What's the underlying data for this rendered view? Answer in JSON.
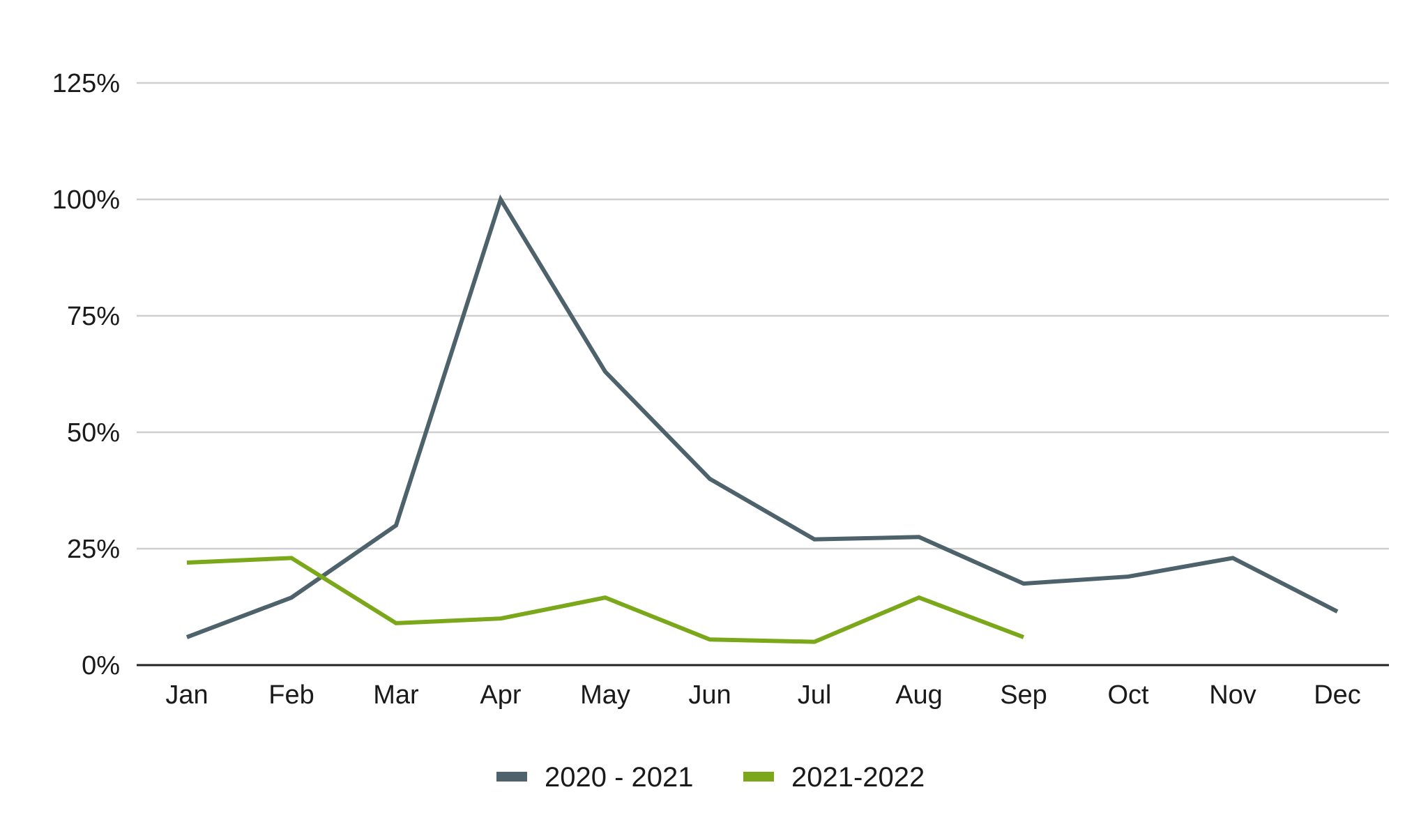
{
  "chart_data": {
    "type": "line",
    "categories": [
      "Jan",
      "Feb",
      "Mar",
      "Apr",
      "May",
      "Jun",
      "Jul",
      "Aug",
      "Sep",
      "Oct",
      "Nov",
      "Dec"
    ],
    "series": [
      {
        "name": "2020 - 2021",
        "color": "#4e626c",
        "values": [
          6,
          14.5,
          30,
          100,
          63,
          40,
          27,
          27.5,
          17.5,
          19,
          23,
          11.5
        ]
      },
      {
        "name": "2021-2022",
        "color": "#7aa81a",
        "values": [
          22,
          23,
          9,
          10,
          14.5,
          5.5,
          5,
          14.5,
          6,
          null,
          null,
          null
        ]
      }
    ],
    "y_ticks": [
      "0%",
      "25%",
      "50%",
      "75%",
      "100%",
      "125%"
    ],
    "ylim": [
      0,
      125
    ],
    "y_unit": "%",
    "title": "",
    "xlabel": "",
    "ylabel": "",
    "grid": true,
    "legend_position": "bottom-center"
  }
}
